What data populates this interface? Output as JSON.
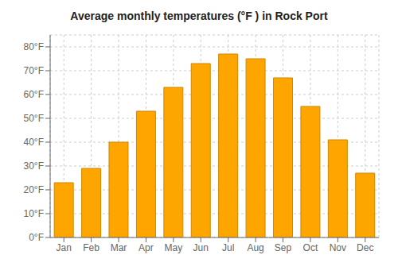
{
  "chart_data": {
    "type": "bar",
    "title": "Average monthly temperatures (°F ) in Rock Port",
    "categories": [
      "Jan",
      "Feb",
      "Mar",
      "Apr",
      "May",
      "Jun",
      "Jul",
      "Aug",
      "Sep",
      "Oct",
      "Nov",
      "Dec"
    ],
    "values": [
      23,
      29,
      40,
      53,
      63,
      73,
      77,
      75,
      67,
      55,
      41,
      27
    ],
    "color": "#FFA500",
    "ylim": [
      0,
      85
    ],
    "yticks": [
      {
        "value": 0,
        "label": "0°F"
      },
      {
        "value": 10,
        "label": "10°F"
      },
      {
        "value": 20,
        "label": "20°F"
      },
      {
        "value": 30,
        "label": "30°F"
      },
      {
        "value": 40,
        "label": "40°F"
      },
      {
        "value": 50,
        "label": "50°F"
      },
      {
        "value": 60,
        "label": "60°F"
      },
      {
        "value": 70,
        "label": "70°F"
      },
      {
        "value": 80,
        "label": "80°F"
      }
    ],
    "grid": true
  }
}
